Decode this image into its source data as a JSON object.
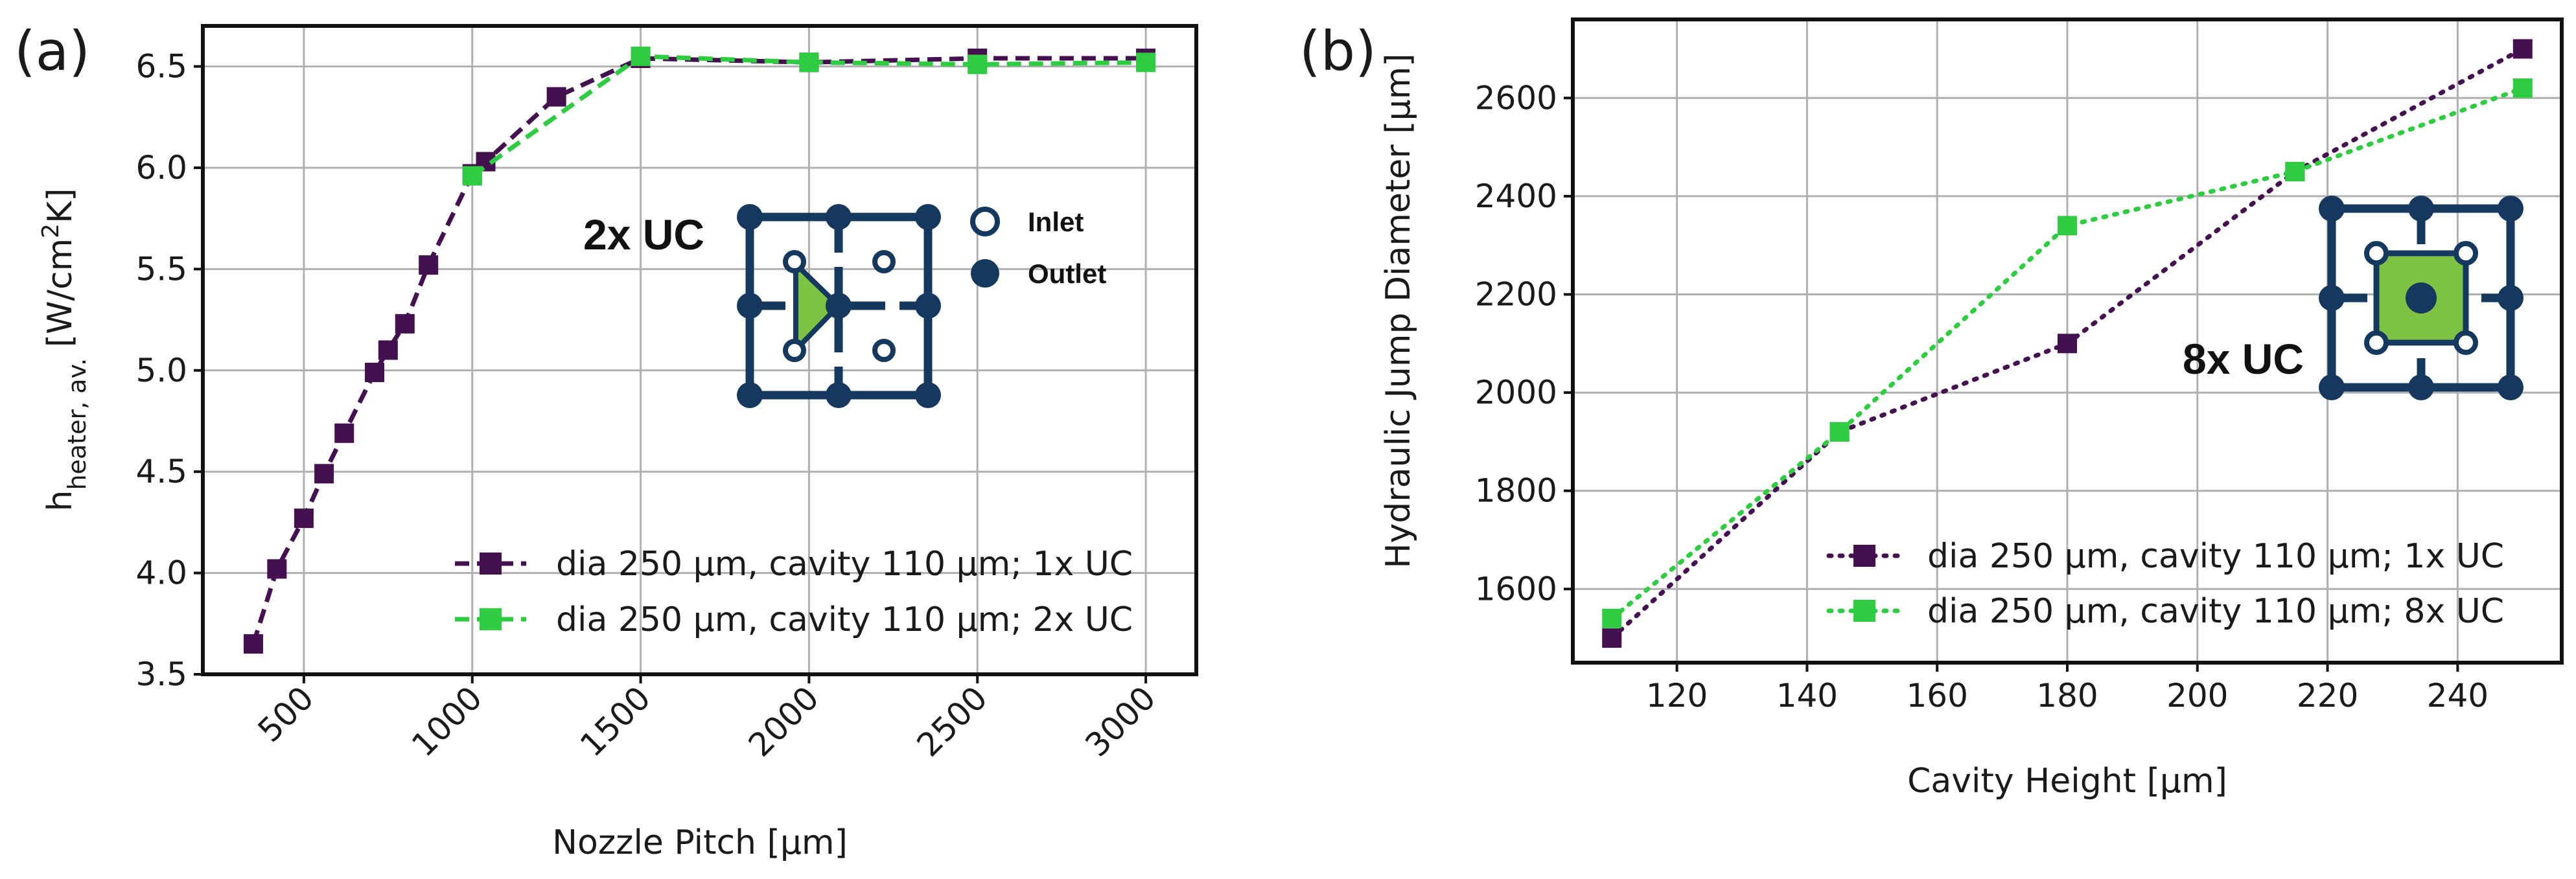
{
  "colors": {
    "purple": "#44104f",
    "green": "#2ecc40",
    "navy": "#14385e",
    "uc_fill": "#7dc242"
  },
  "chart_data": [
    {
      "type": "line",
      "panel_label": "(a)",
      "xlabel": "Nozzle Pitch [µm]",
      "ylabel_main": "h",
      "ylabel_sub": "heater, av.",
      "ylabel_unit": " [W/cm",
      "ylabel_sup": "2",
      "ylabel_end": "K]",
      "xlim": [
        200,
        3150
      ],
      "ylim": [
        3.5,
        6.7
      ],
      "xticks": [
        500,
        1000,
        1500,
        2000,
        2500,
        3000
      ],
      "yticks": [
        3.5,
        4.0,
        4.5,
        5.0,
        5.5,
        6.0,
        6.5
      ],
      "xtick_labels": [
        "500",
        "1000",
        "1500",
        "2000",
        "2500",
        "3000"
      ],
      "ytick_labels": [
        "3.5",
        "4.0",
        "4.5",
        "5.0",
        "5.5",
        "6.0",
        "6.5"
      ],
      "legend_position": "lower-right",
      "series": [
        {
          "name": "dia 250 µm, cavity 110 µm; 1x UC",
          "style": "dashed",
          "x": [
            350,
            420,
            500,
            560,
            620,
            710,
            750,
            800,
            870,
            1000,
            1040,
            1250,
            1500,
            2000,
            2500,
            3000
          ],
          "y": [
            3.65,
            4.02,
            4.27,
            4.49,
            4.69,
            4.99,
            5.1,
            5.23,
            5.52,
            5.97,
            6.03,
            6.35,
            6.54,
            6.52,
            6.54,
            6.54
          ]
        },
        {
          "name": "dia 250 µm, cavity 110 µm; 2x UC",
          "style": "dashed",
          "x": [
            1000,
            1500,
            2000,
            2500,
            3000
          ],
          "y": [
            5.96,
            6.55,
            6.52,
            6.51,
            6.52
          ]
        }
      ],
      "inset": {
        "title": "2x UC",
        "legend": [
          "Inlet",
          "Outlet"
        ]
      }
    },
    {
      "type": "line",
      "panel_label": "(b)",
      "xlabel": "Cavity Height [µm]",
      "ylabel": "Hydraulic Jump Diameter [µm]",
      "xlim": [
        104,
        256
      ],
      "ylim": [
        1450,
        2760
      ],
      "xticks": [
        120,
        140,
        160,
        180,
        200,
        220,
        240
      ],
      "yticks": [
        1600,
        1800,
        2000,
        2200,
        2400,
        2600
      ],
      "xtick_labels": [
        "120",
        "140",
        "160",
        "180",
        "200",
        "220",
        "240"
      ],
      "ytick_labels": [
        "1600",
        "1800",
        "2000",
        "2200",
        "2400",
        "2600"
      ],
      "legend_position": "lower-right",
      "series": [
        {
          "name": "dia 250 µm, cavity 110 µm; 1x UC",
          "style": "dotted",
          "x": [
            110,
            145,
            180,
            215,
            250
          ],
          "y": [
            1500,
            1920,
            2100,
            2450,
            2700
          ]
        },
        {
          "name": "dia 250 µm, cavity 110 µm; 8x UC",
          "style": "dotted",
          "x": [
            110,
            145,
            180,
            215,
            250
          ],
          "y": [
            1540,
            1920,
            2340,
            2450,
            2620
          ]
        }
      ],
      "inset": {
        "title": "8x UC"
      }
    }
  ]
}
